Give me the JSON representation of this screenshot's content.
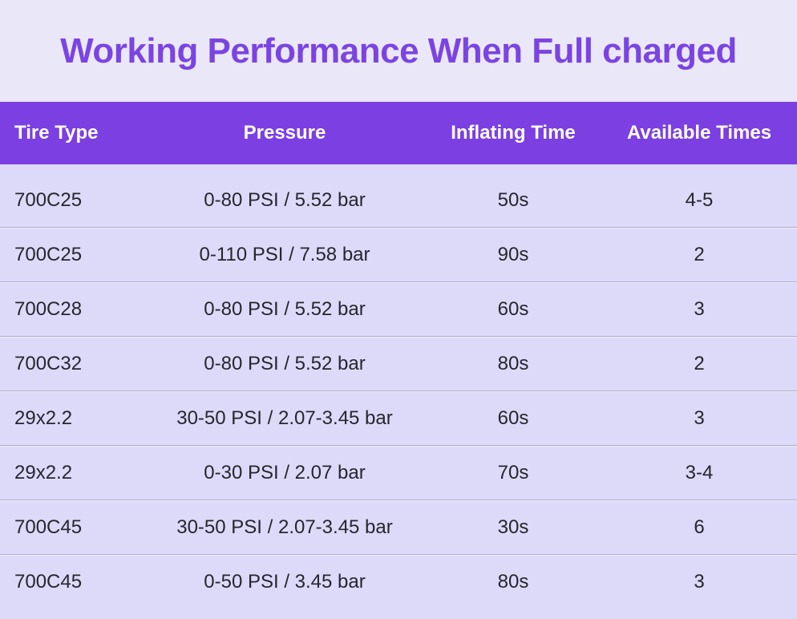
{
  "chart_data": {
    "type": "table",
    "title": "Working Performance When Full charged",
    "columns": [
      "Tire Type",
      "Pressure",
      "Inflating Time",
      "Available Times"
    ],
    "rows": [
      [
        "700C25",
        "0-80 PSI / 5.52 bar",
        "50s",
        "4-5"
      ],
      [
        "700C25",
        "0-110 PSI / 7.58 bar",
        "90s",
        "2"
      ],
      [
        "700C28",
        "0-80 PSI / 5.52 bar",
        "60s",
        "3"
      ],
      [
        "700C32",
        "0-80 PSI / 5.52 bar",
        "80s",
        "2"
      ],
      [
        "29x2.2",
        "30-50 PSI / 2.07-3.45 bar",
        "60s",
        "3"
      ],
      [
        "29x2.2",
        "0-30 PSI / 2.07 bar",
        "70s",
        "3-4"
      ],
      [
        "700C45",
        "30-50 PSI / 2.07-3.45 bar",
        "30s",
        "6"
      ],
      [
        "700C45",
        "0-50 PSI / 3.45 bar",
        "80s",
        "3"
      ]
    ],
    "layout": {
      "legend": "none",
      "grid": "horizontal-row-separators",
      "first_column_align": "left",
      "other_columns_align": "center"
    },
    "colors": {
      "page_bg": "#EAE8F8",
      "title_text": "#7B44E2",
      "header_bg": "#7B3FE2",
      "header_text": "#FFFFFF",
      "row_bg": "#DCDAF8",
      "row_text": "#26262F",
      "separator": "#AEABCE"
    }
  }
}
